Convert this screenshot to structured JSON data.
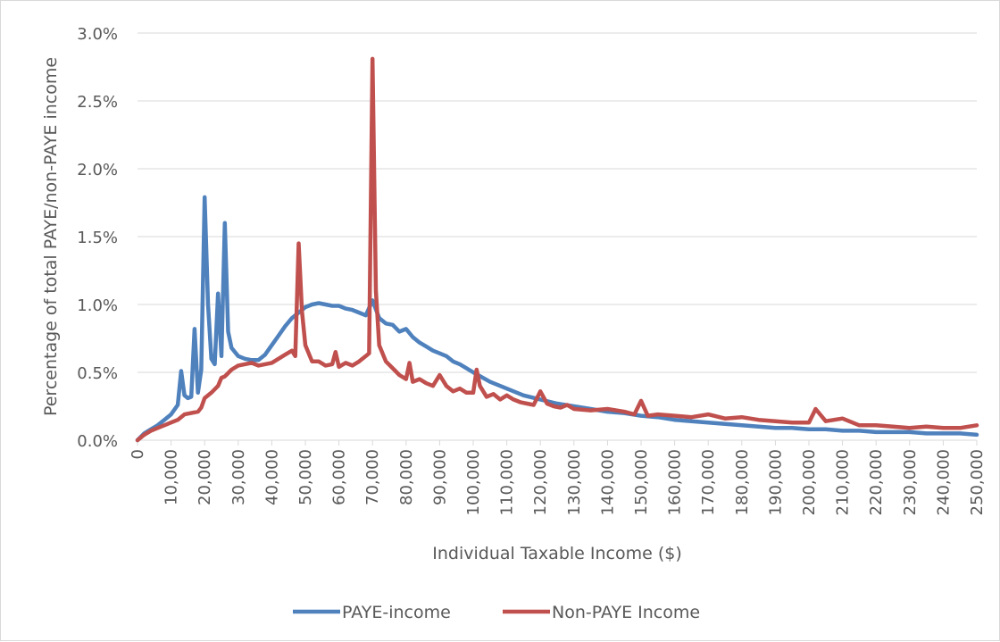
{
  "chart_data": {
    "type": "line",
    "xlabel": "Individual Taxable Income ($)",
    "ylabel": "Percentage of total PAYE/non-PAYE income",
    "xlim": [
      0,
      250000
    ],
    "ylim": [
      0,
      0.03
    ],
    "x_ticks": [
      0,
      10000,
      20000,
      30000,
      40000,
      50000,
      60000,
      70000,
      80000,
      90000,
      100000,
      110000,
      120000,
      130000,
      140000,
      150000,
      160000,
      170000,
      180000,
      190000,
      200000,
      210000,
      220000,
      230000,
      240000,
      250000
    ],
    "x_tick_labels": [
      "0",
      "10,000",
      "20,000",
      "30,000",
      "40,000",
      "50,000",
      "60,000",
      "70,000",
      "80,000",
      "90,000",
      "100,000",
      "110,000",
      "120,000",
      "130,000",
      "140,000",
      "150,000",
      "160,000",
      "170,000",
      "180,000",
      "190,000",
      "200,000",
      "210,000",
      "220,000",
      "230,000",
      "240,000",
      "250,000"
    ],
    "y_ticks": [
      0,
      0.005,
      0.01,
      0.015,
      0.02,
      0.025,
      0.03
    ],
    "y_tick_labels": [
      "0.0%",
      "0.5%",
      "1.0%",
      "1.5%",
      "2.0%",
      "2.5%",
      "3.0%"
    ],
    "grid": "horizontal",
    "legend_position": "bottom",
    "series": [
      {
        "name": "PAYE-income",
        "color": "#4f81bd",
        "x": [
          0,
          2000,
          4000,
          6000,
          8000,
          10000,
          12000,
          13000,
          14000,
          15000,
          16000,
          17000,
          18000,
          19000,
          20000,
          21000,
          22000,
          23000,
          24000,
          25000,
          26000,
          27000,
          28000,
          30000,
          32000,
          34000,
          36000,
          38000,
          40000,
          42000,
          44000,
          46000,
          48000,
          50000,
          52000,
          54000,
          56000,
          58000,
          60000,
          62000,
          64000,
          66000,
          68000,
          70000,
          72000,
          74000,
          76000,
          78000,
          80000,
          82000,
          84000,
          86000,
          88000,
          90000,
          92000,
          94000,
          96000,
          98000,
          100000,
          105000,
          110000,
          115000,
          120000,
          125000,
          130000,
          135000,
          140000,
          145000,
          150000,
          155000,
          160000,
          165000,
          170000,
          175000,
          180000,
          185000,
          190000,
          195000,
          200000,
          205000,
          210000,
          215000,
          220000,
          225000,
          230000,
          235000,
          240000,
          245000,
          250000
        ],
        "values": [
          0.0,
          0.0005,
          0.0008,
          0.0011,
          0.0015,
          0.0019,
          0.0026,
          0.0051,
          0.0033,
          0.0031,
          0.0032,
          0.0082,
          0.0035,
          0.0052,
          0.0179,
          0.01,
          0.006,
          0.0056,
          0.0108,
          0.0062,
          0.016,
          0.008,
          0.0068,
          0.0062,
          0.006,
          0.0059,
          0.0059,
          0.0063,
          0.007,
          0.0077,
          0.0084,
          0.009,
          0.0094,
          0.0098,
          0.01,
          0.0101,
          0.01,
          0.0099,
          0.0099,
          0.0097,
          0.0096,
          0.0094,
          0.0092,
          0.0103,
          0.009,
          0.0086,
          0.0085,
          0.008,
          0.0082,
          0.0076,
          0.0072,
          0.0069,
          0.0066,
          0.0064,
          0.0062,
          0.0058,
          0.0056,
          0.0053,
          0.005,
          0.0043,
          0.0038,
          0.0033,
          0.003,
          0.0027,
          0.0025,
          0.0023,
          0.0021,
          0.002,
          0.0018,
          0.0017,
          0.0015,
          0.0014,
          0.0013,
          0.0012,
          0.0011,
          0.001,
          0.0009,
          0.0009,
          0.0008,
          0.0008,
          0.0007,
          0.0007,
          0.0006,
          0.0006,
          0.0006,
          0.0005,
          0.0005,
          0.0005,
          0.0004
        ]
      },
      {
        "name": "Non-PAYE Income",
        "color": "#c0504d",
        "x": [
          0,
          2000,
          4000,
          6000,
          8000,
          10000,
          12000,
          14000,
          16000,
          18000,
          19000,
          20000,
          22000,
          24000,
          25000,
          26000,
          28000,
          30000,
          32000,
          34000,
          36000,
          38000,
          40000,
          42000,
          44000,
          46000,
          47000,
          48000,
          49000,
          50000,
          52000,
          54000,
          56000,
          58000,
          59000,
          60000,
          62000,
          64000,
          66000,
          68000,
          69000,
          70000,
          71000,
          72000,
          74000,
          76000,
          78000,
          80000,
          81000,
          82000,
          84000,
          86000,
          88000,
          90000,
          92000,
          94000,
          96000,
          98000,
          100000,
          101000,
          102000,
          104000,
          106000,
          108000,
          110000,
          112000,
          114000,
          116000,
          118000,
          120000,
          122000,
          124000,
          126000,
          128000,
          130000,
          135000,
          140000,
          145000,
          148000,
          150000,
          152000,
          155000,
          160000,
          165000,
          170000,
          175000,
          180000,
          185000,
          190000,
          195000,
          200000,
          202000,
          205000,
          210000,
          215000,
          220000,
          225000,
          230000,
          235000,
          240000,
          245000,
          250000
        ],
        "values": [
          0.0,
          0.0004,
          0.0007,
          0.0009,
          0.0011,
          0.0013,
          0.0015,
          0.0019,
          0.002,
          0.0021,
          0.0024,
          0.0031,
          0.0035,
          0.004,
          0.0046,
          0.0047,
          0.0052,
          0.0055,
          0.0056,
          0.0057,
          0.0055,
          0.0056,
          0.0057,
          0.006,
          0.0063,
          0.0066,
          0.0062,
          0.0145,
          0.0095,
          0.007,
          0.0058,
          0.0058,
          0.0055,
          0.0056,
          0.0065,
          0.0054,
          0.0057,
          0.0055,
          0.0058,
          0.0062,
          0.0064,
          0.0281,
          0.011,
          0.007,
          0.0058,
          0.0053,
          0.0048,
          0.0045,
          0.0057,
          0.0043,
          0.0045,
          0.0042,
          0.004,
          0.0048,
          0.004,
          0.0036,
          0.0038,
          0.0035,
          0.0035,
          0.0052,
          0.004,
          0.0032,
          0.0034,
          0.003,
          0.0033,
          0.003,
          0.0028,
          0.0027,
          0.0026,
          0.0036,
          0.0027,
          0.0025,
          0.0024,
          0.0026,
          0.0023,
          0.0022,
          0.0023,
          0.0021,
          0.0019,
          0.0029,
          0.0018,
          0.0019,
          0.0018,
          0.0017,
          0.0019,
          0.0016,
          0.0017,
          0.0015,
          0.0014,
          0.0013,
          0.0013,
          0.0023,
          0.0014,
          0.0016,
          0.0011,
          0.0011,
          0.001,
          0.0009,
          0.001,
          0.0009,
          0.0009,
          0.0011
        ]
      }
    ]
  }
}
